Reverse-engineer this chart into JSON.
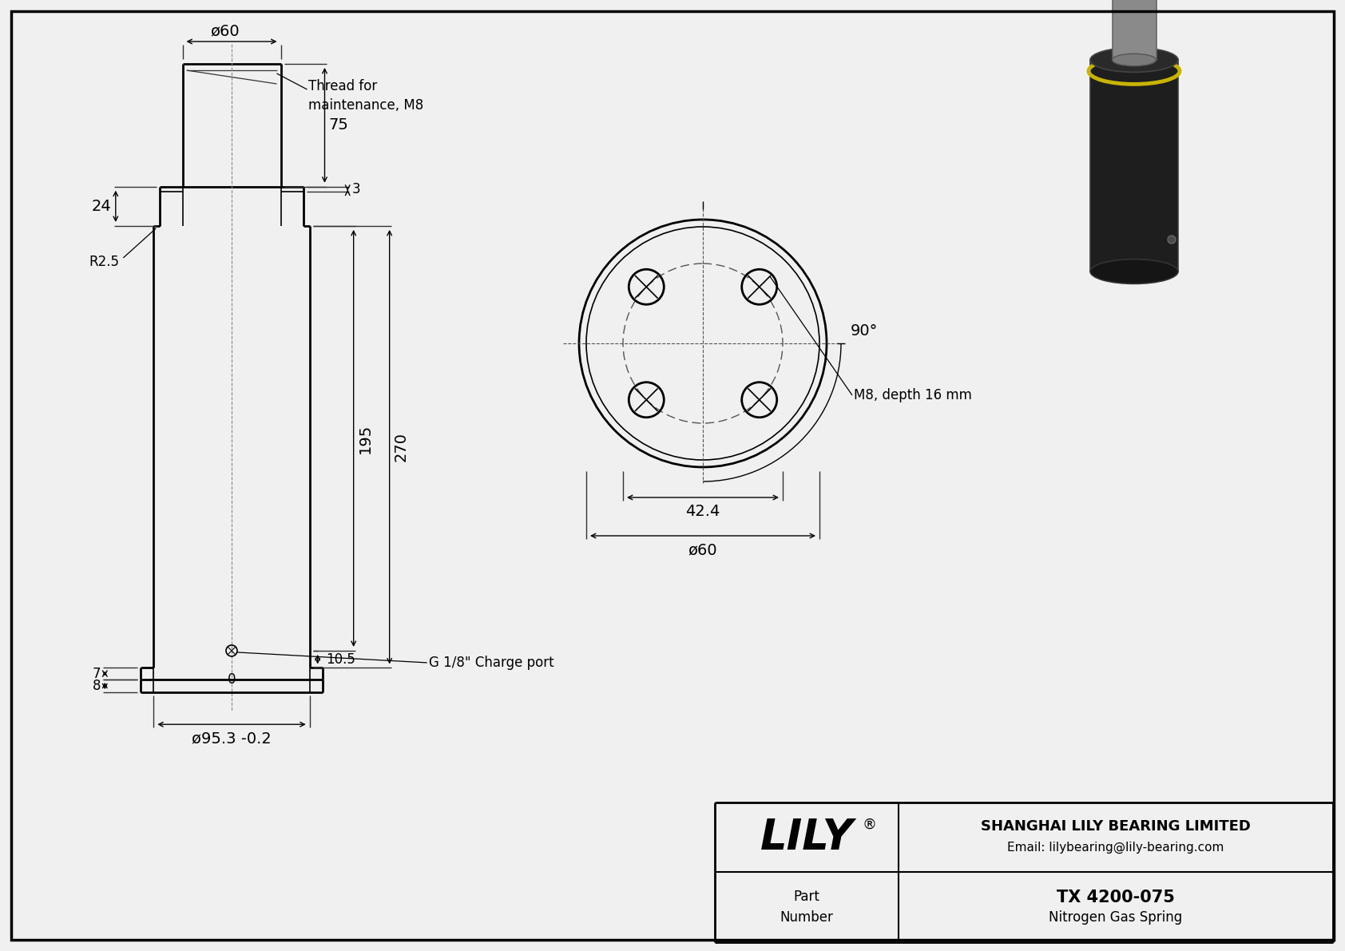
{
  "bg_color": "#f0f0f0",
  "line_color": "#000000",
  "drawing_bg": "#f0f0f0",
  "title_company": "SHANGHAI LILY BEARING LIMITED",
  "title_email": "Email: lilybearing@lily-bearing.com",
  "part_number": "TX 4200-075",
  "part_desc": "Nitrogen Gas Spring",
  "lily_text": "LILY",
  "border_color": "#000000",
  "inner_bg": "#f0f0f0"
}
